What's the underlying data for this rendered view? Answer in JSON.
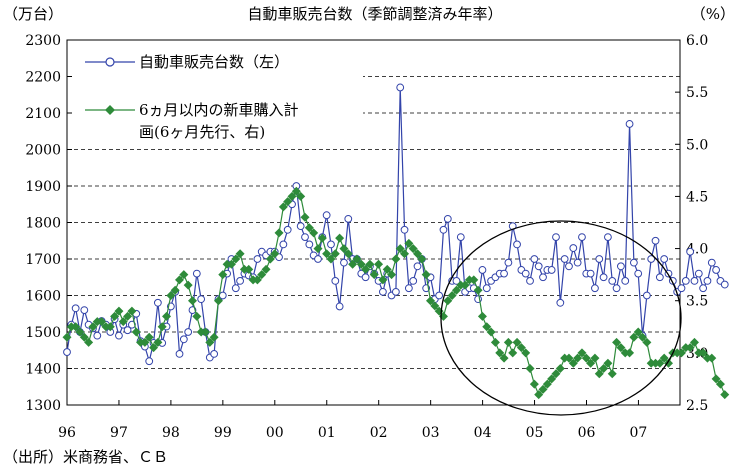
{
  "chart_data": {
    "type": "line",
    "title": "自動車販売台数（季節調整済み年率）",
    "left_unit": "（万台）",
    "right_unit": "（%）",
    "source": "（出所）米商務省、ＣＢ",
    "ylim_left": [
      1300,
      2300
    ],
    "yticks_left": [
      "1300",
      "1400",
      "1500",
      "1600",
      "1700",
      "1800",
      "1900",
      "2000",
      "2100",
      "2200",
      "2300"
    ],
    "ylim_right": [
      2.5,
      6.0
    ],
    "yticks_right": [
      "2.5",
      "3.0",
      "3.5",
      "4.0",
      "4.5",
      "5.0",
      "5.5",
      "6.0"
    ],
    "xlim": [
      1996,
      2007.8
    ],
    "xticks": [
      {
        "x": 1996,
        "label": "96"
      },
      {
        "x": 1997,
        "label": "97"
      },
      {
        "x": 1998,
        "label": "98"
      },
      {
        "x": 1999,
        "label": "99"
      },
      {
        "x": 2000,
        "label": "00"
      },
      {
        "x": 2001,
        "label": "01"
      },
      {
        "x": 2002,
        "label": "02"
      },
      {
        "x": 2003,
        "label": "03"
      },
      {
        "x": 2004,
        "label": "04"
      },
      {
        "x": 2005,
        "label": "05"
      },
      {
        "x": 2006,
        "label": "06"
      },
      {
        "x": 2007,
        "label": "07"
      }
    ],
    "grid": "horizontal dashed",
    "legend_position": "top-left",
    "annotation": "ellipse around 2004–2007",
    "series": [
      {
        "name": "自動車販売台数（左）",
        "axis": "left",
        "color": "#3344aa",
        "marker": "circle",
        "x_start": 1996.0,
        "x_step": 0.0833,
        "values": [
          1445,
          1520,
          1565,
          1500,
          1560,
          1520,
          1510,
          1490,
          1530,
          1520,
          1500,
          1535,
          1490,
          1520,
          1505,
          1520,
          1550,
          1475,
          1460,
          1420,
          1470,
          1580,
          1470,
          1515,
          1570,
          1610,
          1440,
          1480,
          1500,
          1560,
          1660,
          1590,
          1500,
          1430,
          1440,
          1590,
          1600,
          1660,
          1700,
          1620,
          1640,
          1660,
          1655,
          1650,
          1700,
          1720,
          1710,
          1720,
          1720,
          1705,
          1740,
          1780,
          1850,
          1900,
          1790,
          1760,
          1740,
          1710,
          1700,
          1760,
          1820,
          1740,
          1640,
          1570,
          1690,
          1810,
          1700,
          1700,
          1660,
          1650,
          1680,
          1660,
          1640,
          1610,
          1660,
          1600,
          1610,
          2170,
          1780,
          1620,
          1640,
          1680,
          1700,
          1620,
          1650,
          1590,
          1600,
          1780,
          1810,
          1640,
          1640,
          1760,
          1610,
          1620,
          1620,
          1590,
          1670,
          1620,
          1640,
          1650,
          1660,
          1660,
          1690,
          1790,
          1740,
          1670,
          1660,
          1640,
          1700,
          1680,
          1650,
          1670,
          1670,
          1760,
          1580,
          1700,
          1680,
          1730,
          1690,
          1760,
          1660,
          1660,
          1620,
          1700,
          1650,
          1760,
          1640,
          1620,
          1680,
          1640,
          2070,
          1690,
          1660,
          1490,
          1600,
          1700,
          1750,
          1650,
          1700,
          1660,
          1640,
          1610,
          1620,
          1640,
          1720,
          1640,
          1660,
          1620,
          1640,
          1690,
          1670,
          1640,
          1630
        ]
      },
      {
        "name": "6ヵ月以内の新車購入計画(6ヶ月先行、右)",
        "axis": "right",
        "color": "#2e8b3a",
        "marker": "diamond",
        "x_start": 1996.0,
        "x_step": 0.0833,
        "values": [
          3.15,
          3.25,
          3.25,
          3.2,
          3.15,
          3.1,
          3.25,
          3.3,
          3.3,
          3.25,
          3.25,
          3.35,
          3.4,
          3.3,
          3.35,
          3.4,
          3.2,
          3.1,
          3.1,
          3.15,
          3.05,
          3.1,
          3.25,
          3.35,
          3.55,
          3.6,
          3.7,
          3.75,
          3.65,
          3.5,
          3.35,
          3.2,
          3.2,
          3.1,
          3.15,
          3.5,
          3.75,
          3.85,
          3.85,
          3.9,
          3.95,
          3.8,
          3.8,
          3.7,
          3.7,
          3.75,
          3.8,
          3.9,
          3.95,
          4.15,
          4.4,
          4.45,
          4.5,
          4.55,
          4.5,
          4.3,
          4.2,
          4.15,
          4.0,
          4.1,
          3.95,
          3.9,
          3.95,
          4.1,
          4.0,
          3.95,
          3.85,
          3.9,
          3.85,
          3.8,
          3.85,
          3.75,
          3.85,
          3.7,
          3.8,
          3.75,
          3.9,
          4.0,
          3.95,
          4.05,
          4.0,
          3.95,
          3.9,
          3.75,
          3.5,
          3.45,
          3.4,
          3.35,
          3.5,
          3.55,
          3.6,
          3.65,
          3.65,
          3.7,
          3.7,
          3.6,
          3.35,
          3.25,
          3.2,
          3.1,
          3.0,
          2.95,
          3.1,
          3.0,
          3.1,
          3.05,
          3.0,
          2.85,
          2.7,
          2.6,
          2.65,
          2.7,
          2.75,
          2.8,
          2.85,
          2.95,
          2.95,
          2.9,
          2.95,
          3.0,
          2.95,
          2.9,
          2.95,
          2.8,
          2.85,
          2.9,
          2.8,
          3.1,
          3.05,
          3.0,
          3.0,
          3.15,
          3.2,
          3.15,
          3.1,
          2.9,
          2.9,
          2.9,
          2.95,
          2.9,
          3.0,
          3.0,
          3.0,
          3.05,
          3.05,
          3.1,
          3.0,
          3.0,
          2.95,
          2.95,
          2.75,
          2.7,
          2.6
        ]
      }
    ]
  }
}
